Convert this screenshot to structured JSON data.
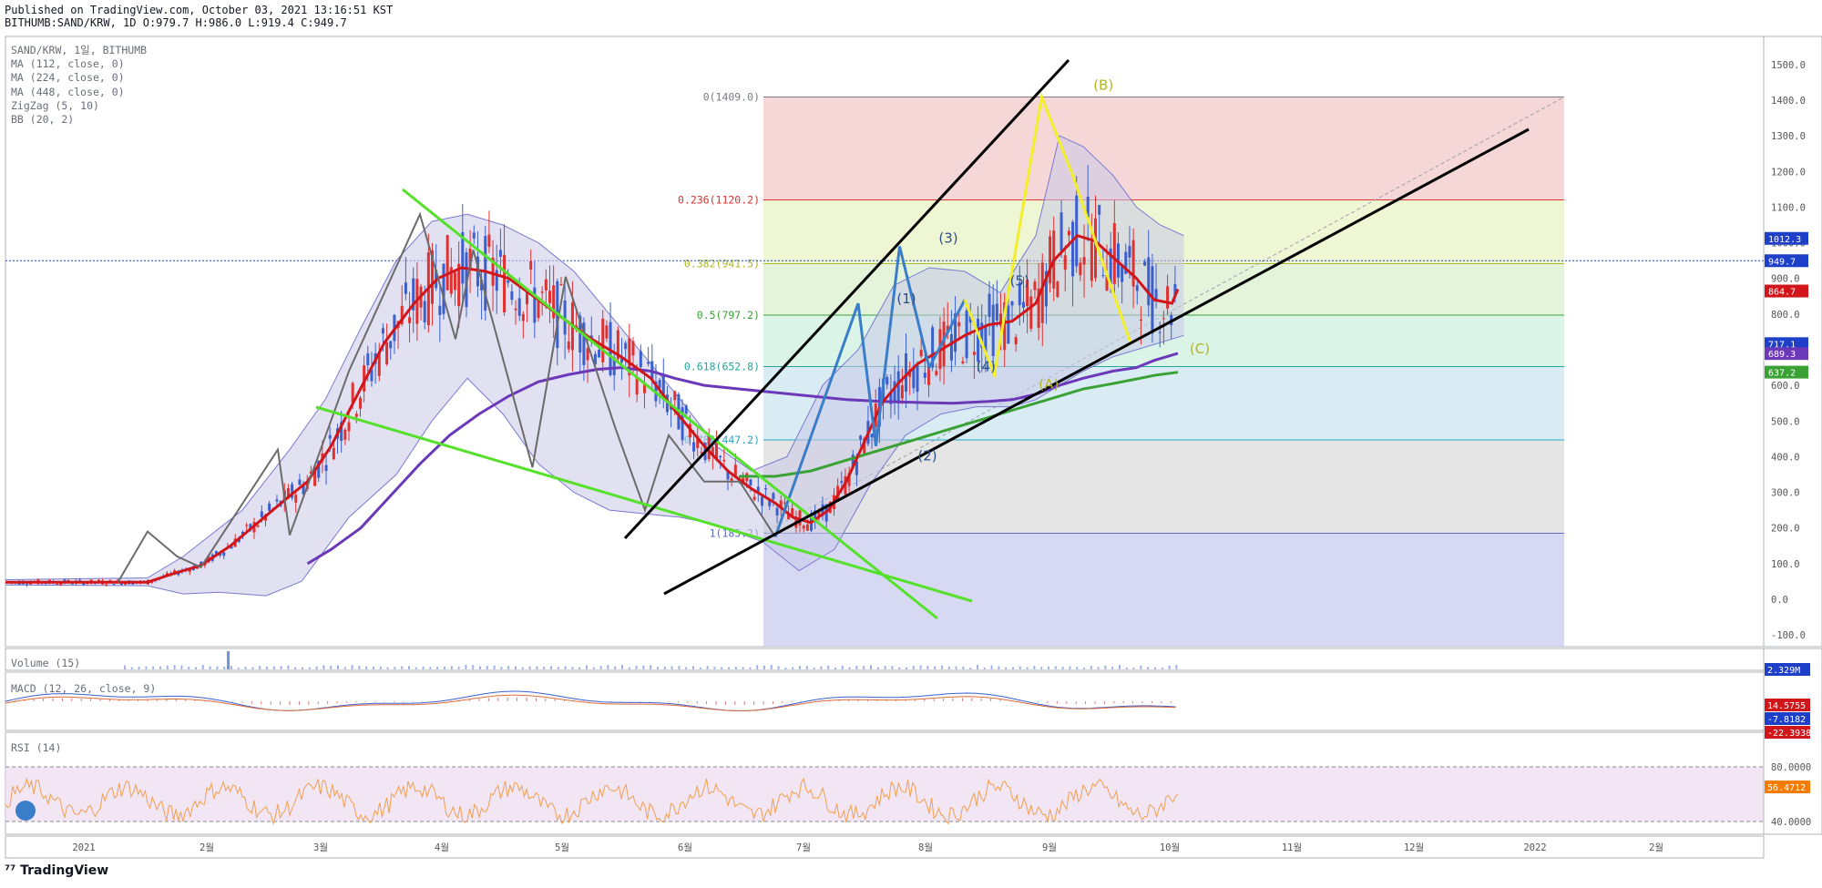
{
  "header": {
    "published": "Published on TradingView.com, October 03, 2021 13:16:51 KST",
    "symbol_line": "BITHUMB:SAND/KRW, 1D O:979.7 H:986.0 L:919.4 C:949.7"
  },
  "legend": [
    "SAND/KRW, 1일, BITHUMB",
    "MA (112, close, 0)",
    "MA (224, close, 0)",
    "MA (448, close, 0)",
    "ZigZag (5, 10)",
    "BB (20, 2)"
  ],
  "panes": {
    "volume": "Volume (15)",
    "macd": "MACD (12, 26, close, 9)",
    "rsi": "RSI (14)"
  },
  "footer": {
    "brand": "TradingView"
  },
  "colors": {
    "ma112": "#d0161b",
    "ma224": "#6a38b8",
    "ma448": "#3aa235",
    "zigzag": "#6b6b6b",
    "wave_blue": "#3a7dc9",
    "wave_yellow": "#f2ee2a",
    "channel_green": "#55e02a",
    "trend_black": "#000000",
    "bb_fill": "#c8c8e8",
    "bb_line": "#7a7ad0",
    "candle_up": "#e03131",
    "candle_down": "#3b5fcf"
  },
  "chart_data": {
    "type": "line",
    "title": "",
    "x_labels": [
      "2021",
      "2월",
      "3월",
      "4월",
      "5월",
      "6월",
      "7월",
      "8월",
      "9월",
      "10월",
      "11월",
      "12월",
      "2022",
      "2월"
    ],
    "y_ticks": [
      -100,
      0,
      100,
      200,
      300,
      400,
      500,
      600,
      700,
      800,
      900,
      1000,
      1100,
      1200,
      1300,
      1400,
      1500
    ],
    "ylim": [
      -130,
      1560
    ],
    "fibonacci": [
      {
        "label": "0(1409.0)",
        "value": 1409.0,
        "color": "#787b86",
        "fill": "#f2c9c9"
      },
      {
        "label": "0.236(1120.2)",
        "value": 1120.2,
        "color": "#e03131",
        "fill": "#eaf3c4"
      },
      {
        "label": "0.382(941.5)",
        "value": 941.5,
        "color": "#a7b82a",
        "fill": "#d9f0cf"
      },
      {
        "label": "0.5(797.2)",
        "value": 797.2,
        "color": "#3aa235",
        "fill": "#cdf0e0"
      },
      {
        "label": "0.618(652.8)",
        "value": 652.8,
        "color": "#26a69a",
        "fill": "#cde6ef"
      },
      {
        "label": "0.786(447.2)",
        "value": 447.2,
        "color": "#26a6c9",
        "fill": "#dcdcdc"
      },
      {
        "label": "1(185.2)",
        "value": 185.2,
        "color": "#5c6bc0",
        "fill": "#c9ccef"
      }
    ],
    "wave_labels": [
      {
        "label": "(1)",
        "x": "2021-07-14",
        "y": 830
      },
      {
        "label": "(2)",
        "x": "2021-07-19",
        "y": 390
      },
      {
        "label": "(3)",
        "x": "2021-07-24",
        "y": 1000
      },
      {
        "label": "(4)",
        "x": "2021-08-02",
        "y": 640
      },
      {
        "label": "(5)",
        "x": "2021-08-10",
        "y": 880
      },
      {
        "label": "(A)",
        "x": "2021-08-17",
        "y": 590
      },
      {
        "label": "(B)",
        "x": "2021-08-30",
        "y": 1430
      },
      {
        "label": "(C)",
        "x": "2021-09-22",
        "y": 690
      }
    ],
    "price_badges": [
      {
        "label": "1012.3",
        "value": 1012.3,
        "color": "#1e3fc8"
      },
      {
        "label": "949.7",
        "value": 949.7,
        "color": "#1e3fc8"
      },
      {
        "label": "864.7",
        "value": 864.7,
        "color": "#d0161b"
      },
      {
        "label": "717.1",
        "value": 717.1,
        "color": "#1e3fc8"
      },
      {
        "label": "689.3",
        "value": 689.3,
        "color": "#6a38b8"
      },
      {
        "label": "637.2",
        "value": 637.2,
        "color": "#3aa235"
      }
    ],
    "indicator_badges": [
      {
        "label": "2.329M",
        "color": "#1e3fc8"
      },
      {
        "label": "14.5755",
        "color": "#d0161b"
      },
      {
        "label": "-7.8182",
        "color": "#1e3fc8"
      },
      {
        "label": "-22.3938",
        "color": "#d0161b"
      },
      {
        "label": "56.4712",
        "color": "#f57c00"
      }
    ],
    "rsi_ticks": [
      {
        "label": "80.0000",
        "value": 80
      },
      {
        "label": "40.0000",
        "value": 40
      }
    ],
    "ma112_points": [
      [
        0,
        48
      ],
      [
        60,
        48
      ],
      [
        95,
        48
      ],
      [
        120,
        48
      ],
      [
        140,
        70
      ],
      [
        165,
        95
      ],
      [
        190,
        150
      ],
      [
        215,
        220
      ],
      [
        240,
        290
      ],
      [
        255,
        330
      ],
      [
        275,
        430
      ],
      [
        295,
        560
      ],
      [
        320,
        720
      ],
      [
        345,
        830
      ],
      [
        365,
        900
      ],
      [
        385,
        930
      ],
      [
        405,
        920
      ],
      [
        425,
        900
      ],
      [
        450,
        840
      ],
      [
        470,
        790
      ],
      [
        495,
        730
      ],
      [
        520,
        680
      ],
      [
        545,
        620
      ],
      [
        565,
        530
      ],
      [
        590,
        430
      ],
      [
        610,
        360
      ],
      [
        630,
        310
      ],
      [
        650,
        270
      ],
      [
        665,
        230
      ],
      [
        680,
        215
      ],
      [
        695,
        250
      ],
      [
        710,
        330
      ],
      [
        725,
        440
      ],
      [
        740,
        550
      ],
      [
        755,
        610
      ],
      [
        770,
        660
      ],
      [
        790,
        700
      ],
      [
        810,
        740
      ],
      [
        830,
        770
      ],
      [
        850,
        780
      ],
      [
        870,
        830
      ],
      [
        885,
        950
      ],
      [
        905,
        1020
      ],
      [
        920,
        1005
      ],
      [
        935,
        960
      ],
      [
        955,
        900
      ],
      [
        970,
        840
      ],
      [
        985,
        830
      ],
      [
        990,
        870
      ]
    ],
    "ma224_points": [
      [
        255,
        100
      ],
      [
        275,
        140
      ],
      [
        300,
        200
      ],
      [
        325,
        290
      ],
      [
        350,
        380
      ],
      [
        375,
        460
      ],
      [
        400,
        520
      ],
      [
        425,
        570
      ],
      [
        450,
        610
      ],
      [
        475,
        630
      ],
      [
        500,
        645
      ],
      [
        520,
        650
      ],
      [
        545,
        640
      ],
      [
        565,
        620
      ],
      [
        590,
        600
      ],
      [
        620,
        590
      ],
      [
        650,
        580
      ],
      [
        680,
        570
      ],
      [
        710,
        560
      ],
      [
        740,
        555
      ],
      [
        770,
        552
      ],
      [
        800,
        550
      ],
      [
        830,
        555
      ],
      [
        850,
        560
      ],
      [
        870,
        575
      ],
      [
        890,
        600
      ],
      [
        910,
        620
      ],
      [
        935,
        640
      ],
      [
        955,
        650
      ],
      [
        970,
        670
      ],
      [
        990,
        690
      ]
    ],
    "ma448_points": [
      [
        620,
        345
      ],
      [
        650,
        345
      ],
      [
        680,
        360
      ],
      [
        710,
        390
      ],
      [
        740,
        420
      ],
      [
        770,
        450
      ],
      [
        800,
        480
      ],
      [
        830,
        510
      ],
      [
        850,
        530
      ],
      [
        870,
        550
      ],
      [
        890,
        570
      ],
      [
        910,
        590
      ],
      [
        935,
        605
      ],
      [
        955,
        618
      ],
      [
        970,
        628
      ],
      [
        990,
        637
      ]
    ],
    "zigzag_points": [
      [
        95,
        48
      ],
      [
        120,
        190
      ],
      [
        145,
        120
      ],
      [
        165,
        90
      ],
      [
        230,
        420
      ],
      [
        240,
        180
      ],
      [
        290,
        640
      ],
      [
        350,
        1080
      ],
      [
        380,
        730
      ],
      [
        395,
        980
      ],
      [
        445,
        370
      ],
      [
        473,
        905
      ],
      [
        505,
        580
      ],
      [
        515,
        480
      ],
      [
        540,
        250
      ],
      [
        560,
        460
      ],
      [
        590,
        330
      ],
      [
        620,
        330
      ],
      [
        650,
        175
      ]
    ],
    "wave_blue_points": [
      [
        650,
        175
      ],
      [
        720,
        830
      ],
      [
        735,
        430
      ],
      [
        755,
        990
      ],
      [
        780,
        650
      ],
      [
        810,
        840
      ]
    ],
    "wave_yellow_points": [
      [
        810,
        840
      ],
      [
        835,
        630
      ],
      [
        875,
        1409
      ],
      [
        900,
        1200
      ],
      [
        950,
        720
      ]
    ],
    "bb_upper": [
      [
        0,
        55
      ],
      [
        120,
        60
      ],
      [
        150,
        120
      ],
      [
        200,
        250
      ],
      [
        240,
        420
      ],
      [
        270,
        560
      ],
      [
        300,
        760
      ],
      [
        330,
        950
      ],
      [
        360,
        1060
      ],
      [
        390,
        1080
      ],
      [
        420,
        1050
      ],
      [
        450,
        1000
      ],
      [
        480,
        920
      ],
      [
        510,
        800
      ],
      [
        540,
        680
      ],
      [
        570,
        560
      ],
      [
        600,
        430
      ],
      [
        630,
        360
      ],
      [
        660,
        400
      ],
      [
        690,
        600
      ],
      [
        720,
        700
      ],
      [
        750,
        880
      ],
      [
        780,
        930
      ],
      [
        810,
        920
      ],
      [
        840,
        860
      ],
      [
        870,
        1020
      ],
      [
        890,
        1300
      ],
      [
        910,
        1270
      ],
      [
        935,
        1190
      ],
      [
        955,
        1100
      ],
      [
        975,
        1050
      ],
      [
        995,
        1020
      ]
    ],
    "bb_lower": [
      [
        0,
        40
      ],
      [
        120,
        38
      ],
      [
        150,
        15
      ],
      [
        180,
        20
      ],
      [
        220,
        10
      ],
      [
        250,
        50
      ],
      [
        290,
        230
      ],
      [
        330,
        350
      ],
      [
        360,
        500
      ],
      [
        390,
        620
      ],
      [
        420,
        520
      ],
      [
        450,
        380
      ],
      [
        480,
        300
      ],
      [
        510,
        250
      ],
      [
        540,
        240
      ],
      [
        570,
        230
      ],
      [
        600,
        210
      ],
      [
        640,
        160
      ],
      [
        670,
        80
      ],
      [
        700,
        140
      ],
      [
        730,
        320
      ],
      [
        760,
        460
      ],
      [
        790,
        520
      ],
      [
        820,
        540
      ],
      [
        850,
        540
      ],
      [
        870,
        560
      ],
      [
        890,
        600
      ],
      [
        910,
        640
      ],
      [
        935,
        680
      ],
      [
        955,
        700
      ],
      [
        975,
        720
      ],
      [
        995,
        740
      ]
    ],
    "candles_note": ""
  }
}
